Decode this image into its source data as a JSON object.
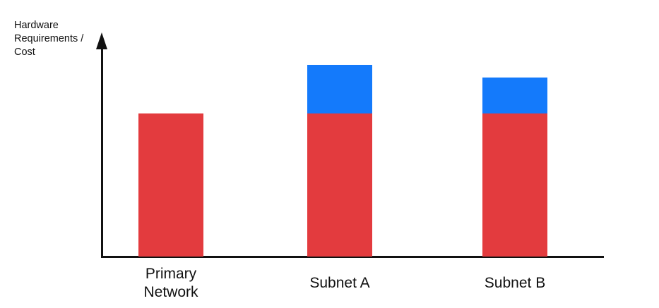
{
  "chart_data": {
    "type": "bar",
    "stacked": true,
    "title": "",
    "xlabel": "",
    "ylabel": "Hardware Requirements / Cost",
    "ylabel_lines": [
      "Hardware",
      "Requirements /",
      "Cost"
    ],
    "categories": [
      "Primary Network",
      "Subnet A",
      "Subnet B"
    ],
    "series": [
      {
        "name": "red-base-segment",
        "color": "#e33b3e",
        "values": [
          1.0,
          1.0,
          1.0
        ]
      },
      {
        "name": "blue-top-segment",
        "color": "#147afb",
        "values": [
          0,
          0.34,
          0.25
        ]
      }
    ],
    "value_units": "relative (no numeric axis shown; values estimated from bar heights, red base = 1.0)",
    "axis_color": "#111111",
    "legend": "none",
    "grid": false
  }
}
